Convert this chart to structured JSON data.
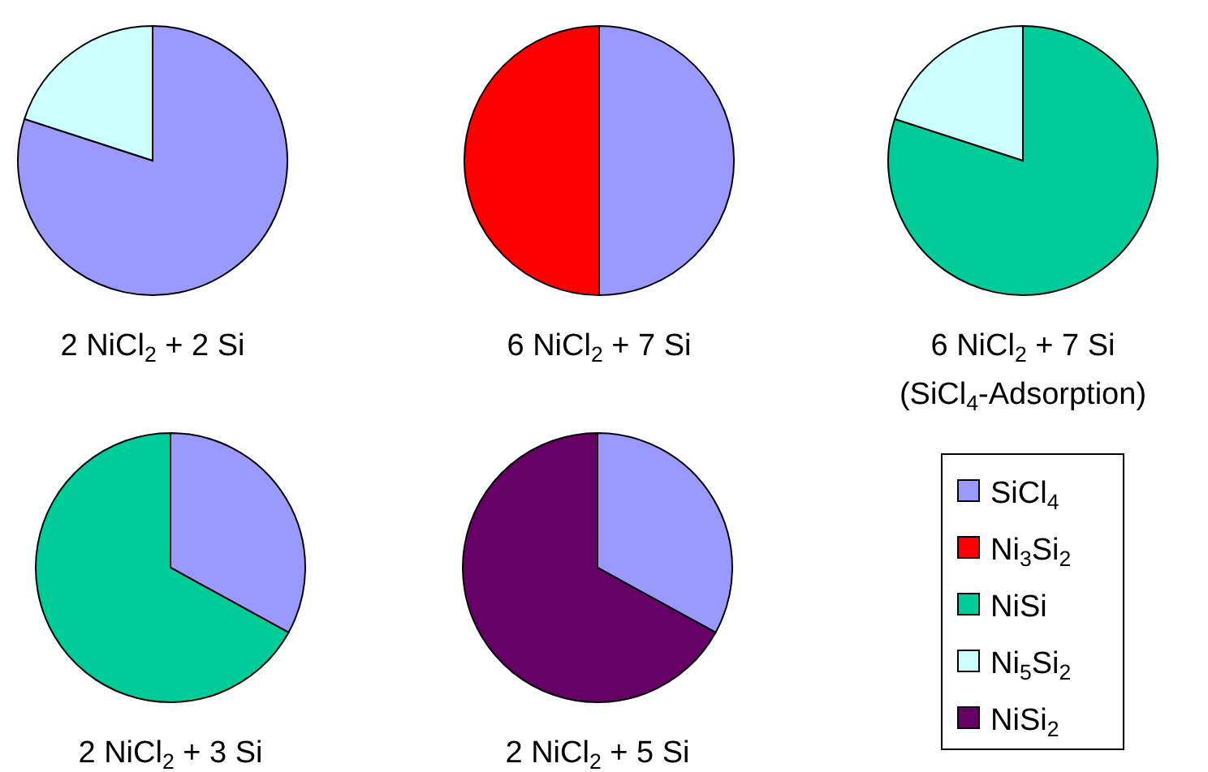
{
  "chart_data": [
    {
      "type": "pie",
      "title": "2 NiCl$_{2}$ + 2 Si",
      "categories": [
        null,
        null
      ],
      "values": [
        80,
        20
      ],
      "colors": [
        "#9999ff",
        "#ccffff"
      ]
    },
    {
      "type": "pie",
      "title": "6 NiCl$_{2}$ + 7 Si",
      "categories": [
        null,
        null
      ],
      "values": [
        50,
        50
      ],
      "colors": [
        "#9999ff",
        "#ff0000"
      ]
    },
    {
      "type": "pie",
      "title": "6 NiCl$_{2}$ + 7 Si",
      "subtitle": "(SiCl$_{4}$-Adsorption)",
      "categories": [
        null,
        null
      ],
      "values": [
        80,
        20
      ],
      "colors": [
        "#00cc99",
        "#ccffff"
      ]
    },
    {
      "type": "pie",
      "title": "2 NiCl$_{2}$ + 3 Si",
      "categories": [
        null,
        null
      ],
      "values": [
        33,
        67
      ],
      "colors": [
        "#9999ff",
        "#00cc99"
      ]
    },
    {
      "type": "pie",
      "title": "2 NiCl$_{2}$ + 5 Si",
      "categories": [
        null,
        null
      ],
      "values": [
        33,
        67
      ],
      "colors": [
        "#9999ff",
        "#660066"
      ]
    },
    {
      "type": "other",
      "categories": [
        "SiCl$_{4}$",
        "Ni$_{3}$Si$_{2}$",
        "NiSi",
        "Ni$_{5}$Si$_{2}$",
        "NiSi$_{2}$"
      ],
      "colors": [
        "#9999ff",
        "#ff0000",
        "#00cc99",
        "#ccffff",
        "#660066"
      ]
    }
  ]
}
